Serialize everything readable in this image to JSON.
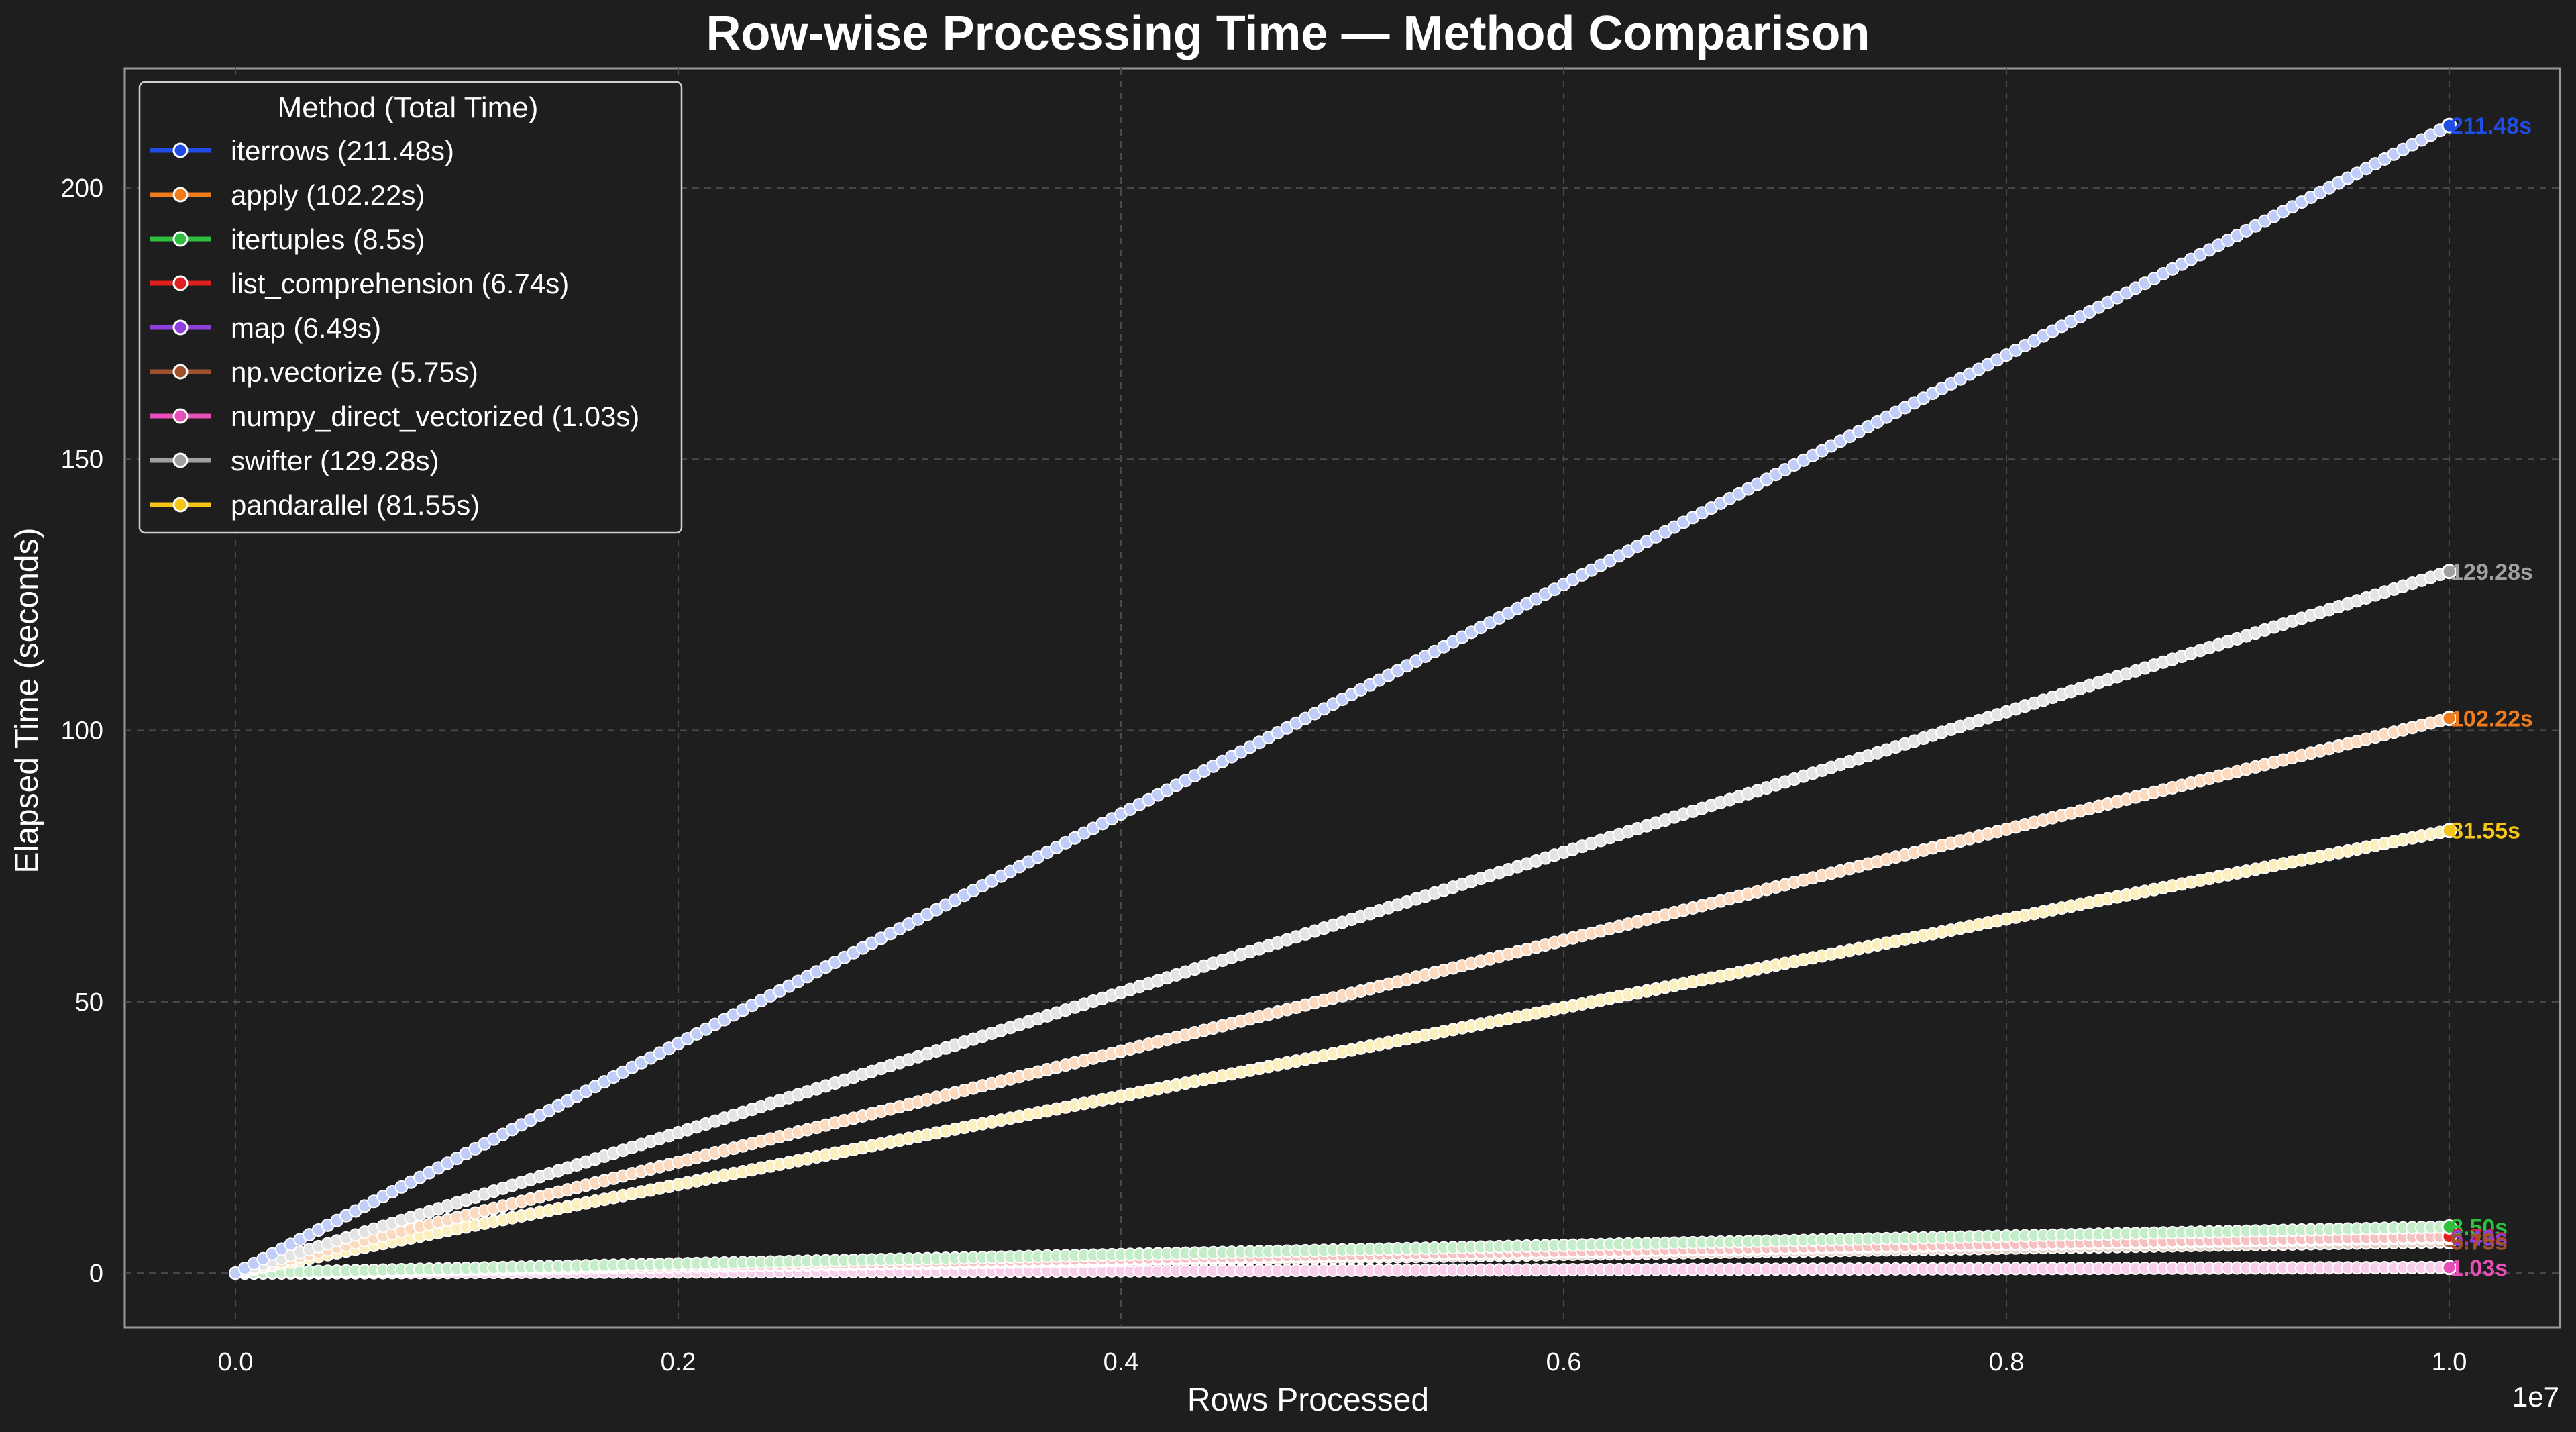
{
  "chart_data": {
    "type": "line",
    "title": "Row-wise Processing Time — Method Comparison",
    "xlabel": "Rows Processed",
    "ylabel": "Elapsed Time (seconds)",
    "x_offset_text": "1e7",
    "xlim": [
      -0.05,
      1.05
    ],
    "ylim": [
      -10,
      222
    ],
    "x_ticks": [
      0.0,
      0.2,
      0.4,
      0.6,
      0.8,
      1.0
    ],
    "x_tick_labels": [
      "0.0",
      "0.2",
      "0.4",
      "0.6",
      "0.8",
      "1.0"
    ],
    "y_ticks": [
      0,
      50,
      100,
      150,
      200
    ],
    "y_tick_labels": [
      "0",
      "50",
      "100",
      "150",
      "200"
    ],
    "grid": true,
    "legend_title": "Method (Total Time)",
    "legend_position": "top-left",
    "series": [
      {
        "name": "iterrows",
        "legend_label": "iterrows  (211.48s)",
        "end_label": "211.48s",
        "total": 211.48,
        "color": "#1f4de6",
        "x": [
          0.0,
          1.0
        ],
        "y": [
          0,
          211.48
        ]
      },
      {
        "name": "apply",
        "legend_label": "apply  (102.22s)",
        "end_label": "102.22s",
        "total": 102.22,
        "color": "#f07c1c",
        "x": [
          0.0,
          1.0
        ],
        "y": [
          0,
          102.22
        ]
      },
      {
        "name": "itertuples",
        "legend_label": "itertuples  (8.5s)",
        "end_label": "8.50s",
        "total": 8.5,
        "color": "#2fbf3f",
        "x": [
          0.0,
          1.0
        ],
        "y": [
          0,
          8.5
        ]
      },
      {
        "name": "list_comprehension",
        "legend_label": "list_comprehension  (6.74s)",
        "end_label": "6.74s",
        "total": 6.74,
        "color": "#e0201e",
        "x": [
          0.0,
          1.0
        ],
        "y": [
          0,
          6.74
        ]
      },
      {
        "name": "map",
        "legend_label": "map  (6.49s)",
        "end_label": "6.49s",
        "total": 6.49,
        "color": "#8e3fdc",
        "x": [
          0.0,
          1.0
        ],
        "y": [
          0,
          6.49
        ]
      },
      {
        "name": "np.vectorize",
        "legend_label": "np.vectorize  (5.75s)",
        "end_label": "5.75s",
        "total": 5.75,
        "color": "#a0522d",
        "x": [
          0.0,
          1.0
        ],
        "y": [
          0,
          5.75
        ]
      },
      {
        "name": "numpy_direct_vectorized",
        "legend_label": "numpy_direct_vectorized  (1.03s)",
        "end_label": "1.03s",
        "total": 1.03,
        "color": "#e84fb8",
        "x": [
          0.0,
          1.0
        ],
        "y": [
          0,
          1.03
        ]
      },
      {
        "name": "swifter",
        "legend_label": "swifter  (129.28s)",
        "end_label": "129.28s",
        "total": 129.28,
        "color": "#a0a0a0",
        "x": [
          0.0,
          1.0
        ],
        "y": [
          0,
          129.28
        ]
      },
      {
        "name": "pandarallel",
        "legend_label": "pandarallel  (81.55s)",
        "end_label": "81.55s",
        "total": 81.55,
        "color": "#f5c518",
        "x": [
          0.0,
          1.0
        ],
        "y": [
          0,
          81.55
        ]
      }
    ]
  }
}
